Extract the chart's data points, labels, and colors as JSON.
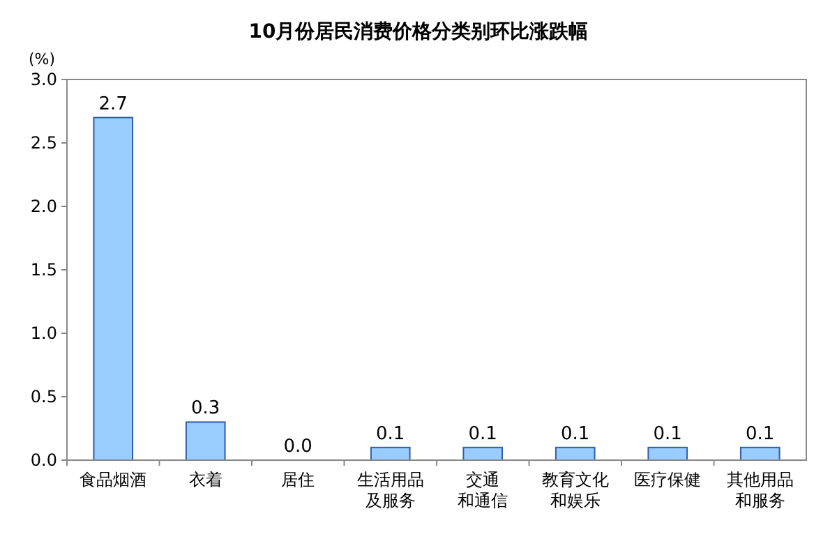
{
  "chart_data": {
    "type": "bar",
    "title": "10月份居民消费价格分类别环比涨跌幅",
    "ylabel": "(%)",
    "categories": [
      "食品烟酒",
      "衣着",
      "居住",
      "生活用品及服务",
      "交通和通信",
      "教育文化和娱乐",
      "医疗保健",
      "其他用品和服务"
    ],
    "values": [
      2.7,
      0.3,
      0,
      0.1,
      0.1,
      0.1,
      0.1,
      0.1
    ],
    "value_labels": [
      "2.7",
      "0.3",
      "0.0",
      "0.1",
      "0.1",
      "0.1",
      "0.1",
      "0.1"
    ],
    "color": "#99ccff",
    "ylim": [
      0,
      3
    ],
    "yticks": [
      {
        "value": 0,
        "label": "0.0"
      },
      {
        "value": 0.5,
        "label": "0.5"
      },
      {
        "value": 1,
        "label": "1.0"
      },
      {
        "value": 1.5,
        "label": "1.5"
      },
      {
        "value": 2,
        "label": "2.0"
      },
      {
        "value": 2.5,
        "label": "2.5"
      },
      {
        "value": 3,
        "label": "3.0"
      }
    ],
    "grid": false
  }
}
